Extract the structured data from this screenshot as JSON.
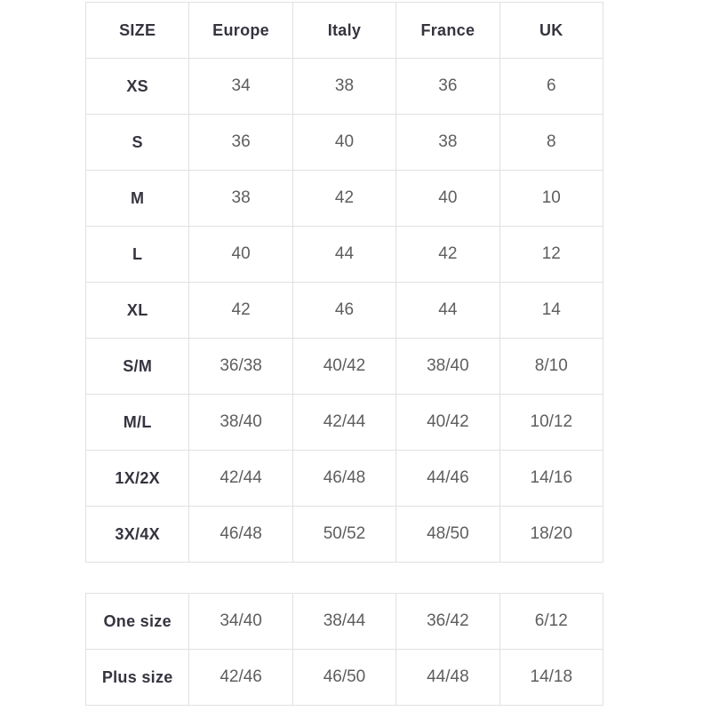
{
  "colors": {
    "background": "#ffffff",
    "border": "#e1e1e1",
    "header_text": "#35343f",
    "value_text": "#5e5e5e"
  },
  "chart_data": [
    {
      "type": "table",
      "columns": [
        "SIZE",
        "Europe",
        "Italy",
        "France",
        "UK"
      ],
      "rows": [
        [
          "XS",
          "34",
          "38",
          "36",
          "6"
        ],
        [
          "S",
          "36",
          "40",
          "38",
          "8"
        ],
        [
          "M",
          "38",
          "42",
          "40",
          "10"
        ],
        [
          "L",
          "40",
          "44",
          "42",
          "12"
        ],
        [
          "XL",
          "42",
          "46",
          "44",
          "14"
        ],
        [
          "S/M",
          "36/38",
          "40/42",
          "38/40",
          "8/10"
        ],
        [
          "M/L",
          "38/40",
          "42/44",
          "40/42",
          "10/12"
        ],
        [
          "1X/2X",
          "42/44",
          "46/48",
          "44/46",
          "14/16"
        ],
        [
          "3X/4X",
          "46/48",
          "50/52",
          "48/50",
          "18/20"
        ]
      ]
    },
    {
      "type": "table",
      "columns": [],
      "rows": [
        [
          "One size",
          "34/40",
          "38/44",
          "36/42",
          "6/12"
        ],
        [
          "Plus size",
          "42/46",
          "46/50",
          "44/48",
          "14/18"
        ]
      ]
    }
  ]
}
